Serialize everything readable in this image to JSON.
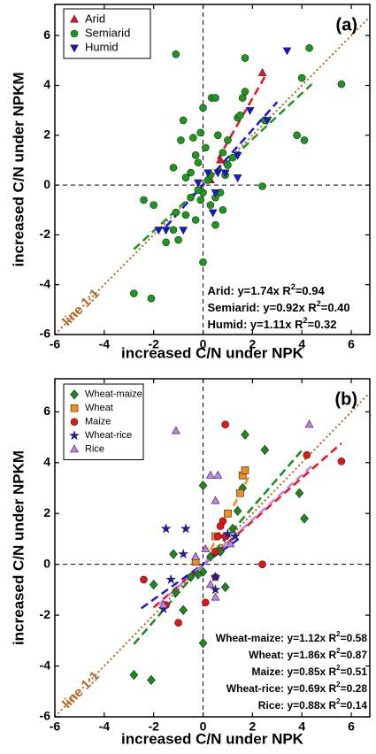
{
  "chart_data": [
    {
      "type": "scatter",
      "panel_label": "(a)",
      "x_label": "increased C/N under NPK",
      "y_label": "increased C/N under NPKM",
      "xlim": [
        -6,
        6.75
      ],
      "ylim": [
        -6,
        7.25
      ],
      "xticks": [
        -6,
        -4,
        -2,
        0,
        2,
        4,
        6
      ],
      "yticks": [
        -6,
        -4,
        -2,
        0,
        2,
        4,
        6
      ],
      "legend": "upper left",
      "grid": false,
      "reference_line": {
        "label": "line 1:1",
        "color": "#b5651d",
        "x": [
          -6,
          6.75
        ],
        "y": [
          -6,
          6.75
        ]
      },
      "equations_align": "left",
      "equations": [
        {
          "pre": "Arid: y=1.74x R",
          "sup": "2",
          "post": "=0.94"
        },
        {
          "pre": "Semiarid: y=0.92x R",
          "sup": "2",
          "post": "=0.40"
        },
        {
          "pre": "Humid: y=1.11x R",
          "sup": "2",
          "post": "=0.32"
        }
      ],
      "series": [
        {
          "name": "Arid",
          "color": "#e8141b",
          "marker": "triangle-up",
          "x": [
            2.4,
            0.7,
            0.3
          ],
          "values": [
            4.5,
            1.0,
            0.2
          ],
          "fit": {
            "x": [
              0.6,
              2.5
            ],
            "y": [
              1.04,
              4.35
            ]
          }
        },
        {
          "name": "Semiarid",
          "color": "#1a9a1a",
          "marker": "circle",
          "x": [
            -1.1,
            -2.8,
            -2.1,
            2.4,
            4.1,
            5.6,
            4.3,
            4.0,
            1.7,
            1.7,
            1.6,
            0.35,
            0.5,
            0.0,
            -0.1,
            -0.8,
            -0.9,
            -1.2,
            -0.7,
            -0.5,
            -0.3,
            -0.2,
            0.1,
            0.6,
            0.8,
            1.2,
            1.0,
            1.4,
            2.5,
            0.2,
            0.0,
            -0.1,
            0.3,
            0.5,
            -0.3,
            -0.7,
            -1.0,
            -1.5,
            -2.0,
            -2.4,
            -1.2,
            0.0,
            0.7,
            0.5,
            -0.2,
            0.3,
            -0.5,
            1.0,
            1.5,
            -0.4,
            -1.1,
            0.8,
            0.9,
            3.8
          ],
          "values": [
            5.25,
            -4.35,
            -4.55,
            -0.05,
            1.8,
            4.05,
            5.5,
            4.3,
            5.1,
            3.75,
            3.5,
            3.5,
            3.5,
            3.1,
            2.1,
            2.6,
            1.8,
            0.7,
            0.3,
            0.5,
            1.2,
            0.9,
            1.5,
            2.0,
            1.3,
            1.1,
            0.8,
            2.7,
            2.6,
            0.2,
            -0.3,
            -0.6,
            -0.8,
            -1.6,
            -1.4,
            -1.2,
            -2.2,
            -2.3,
            -0.8,
            -0.6,
            -1.8,
            -3.1,
            -0.3,
            -0.5,
            -0.2,
            0.4,
            -0.5,
            1.8,
            2.8,
            1.9,
            -1.1,
            -1.0,
            0.4,
            2.0
          ],
          "fit": {
            "x": [
              -2.8,
              4.4
            ],
            "y": [
              -2.58,
              4.05
            ]
          }
        },
        {
          "name": "Humid",
          "color": "#1515e0",
          "marker": "triangle-down",
          "x": [
            3.4,
            1.9,
            2.6,
            -1.5,
            -1.8,
            -0.8,
            0.2,
            0.6,
            0.9,
            1.4,
            1.4,
            0.4,
            0.5,
            -0.2
          ],
          "values": [
            5.4,
            3.0,
            2.6,
            -1.8,
            -1.8,
            -1.8,
            0.5,
            0.5,
            0.5,
            0.3,
            1.2,
            -1.1,
            -0.3,
            0.1
          ],
          "fit": {
            "x": [
              -1.5,
              3.0
            ],
            "y": [
              -1.67,
              3.33
            ]
          }
        }
      ]
    },
    {
      "type": "scatter",
      "panel_label": "(b)",
      "x_label": "increased C/N under NPK",
      "y_label": "increased C/N under NPKM",
      "xlim": [
        -6,
        6.75
      ],
      "ylim": [
        -6,
        7.3
      ],
      "xticks": [
        -6,
        -4,
        -2,
        0,
        2,
        4,
        6
      ],
      "yticks": [
        -6,
        -4,
        -2,
        0,
        2,
        4,
        6
      ],
      "legend": "upper left",
      "grid": false,
      "reference_line": {
        "label": "line 1:1",
        "color": "#b5651d",
        "x": [
          -6,
          6.75
        ],
        "y": [
          -6,
          6.75
        ]
      },
      "equations_align": "right",
      "equations": [
        {
          "pre": "Wheat-maize: y=1.12x R",
          "sup": "2",
          "post": "=0.58"
        },
        {
          "pre": "Wheat: y=1.86x R",
          "sup": "2",
          "post": "=0.87"
        },
        {
          "pre": "Maize: y=0.85x R",
          "sup": "2",
          "post": "=0.51"
        },
        {
          "pre": "Wheat-rice: y=0.69x R",
          "sup": "2",
          "post": "=0.28"
        },
        {
          "pre": "Rice: y=0.88x R",
          "sup": "2",
          "post": "=0.14"
        }
      ],
      "series": [
        {
          "name": "Wheat-maize",
          "color": "#1a8a1a",
          "marker": "diamond",
          "x": [
            -2.8,
            -2.1,
            -2.0,
            -1.1,
            -0.8,
            -0.5,
            0.0,
            0.0,
            0.0,
            1.7,
            1.6,
            1.4,
            4.1,
            3.9,
            2.5,
            0.7,
            0.3,
            -0.2,
            1.2,
            -1.2,
            0.9
          ],
          "values": [
            -4.35,
            -4.55,
            -0.8,
            -1.1,
            -1.8,
            -0.5,
            -0.3,
            -3.1,
            3.1,
            5.1,
            3.0,
            2.1,
            1.8,
            2.8,
            4.5,
            0.5,
            0.3,
            -0.4,
            1.4,
            0.4,
            -0.9
          ],
          "fit": {
            "x": [
              -2.8,
              4.0
            ],
            "y": [
              -3.14,
              4.48
            ]
          }
        },
        {
          "name": "Wheat",
          "color": "#f28c1a",
          "marker": "square",
          "x": [
            1.5,
            1.6,
            1.7,
            1.0,
            0.5,
            -0.3
          ],
          "values": [
            2.8,
            3.5,
            3.7,
            2.0,
            1.1,
            0.1
          ],
          "fit": {
            "x": [
              0.3,
              1.9
            ],
            "y": [
              0.56,
              3.53
            ]
          }
        },
        {
          "name": "Maize",
          "color": "#ee1111",
          "marker": "circle",
          "x": [
            5.6,
            4.2,
            2.4,
            0.9,
            0.8,
            0.7,
            0.6,
            0.9,
            0.5,
            -2.4,
            -1.0,
            0.5,
            -1.5,
            0.1
          ],
          "values": [
            4.05,
            4.3,
            0.0,
            5.5,
            1.7,
            1.5,
            1.1,
            1.1,
            0.5,
            -0.6,
            -2.3,
            -0.5,
            -1.6,
            -1.5
          ],
          "fit": {
            "x": [
              -2.0,
              5.6
            ],
            "y": [
              -1.7,
              4.76
            ]
          }
        },
        {
          "name": "Wheat-rice",
          "color": "#1a1ad0",
          "marker": "star",
          "x": [
            -1.6,
            -1.3,
            -0.7,
            -0.8,
            1.0,
            1.3,
            0.5,
            -1.5,
            0.5
          ],
          "values": [
            -1.75,
            -0.6,
            1.4,
            0.4,
            1.2,
            1.1,
            -1.0,
            1.4,
            -0.5
          ],
          "fit": {
            "x": [
              -2.5,
              1.5
            ],
            "y": [
              -1.73,
              1.04
            ]
          }
        },
        {
          "name": "Rice",
          "color": "#c87ef0",
          "marker": "triangle-up",
          "x": [
            -1.1,
            4.3,
            0.3,
            0.6,
            0.5,
            1.1,
            0.1,
            -0.3,
            0.3,
            0.5,
            -1.6
          ],
          "values": [
            5.25,
            5.5,
            3.5,
            3.5,
            2.5,
            0.8,
            0.6,
            0.3,
            -0.8,
            -1.3,
            -1.6
          ],
          "fit": {
            "x": [
              -1.8,
              4.4
            ],
            "y": [
              -1.58,
              3.87
            ]
          }
        }
      ]
    }
  ]
}
